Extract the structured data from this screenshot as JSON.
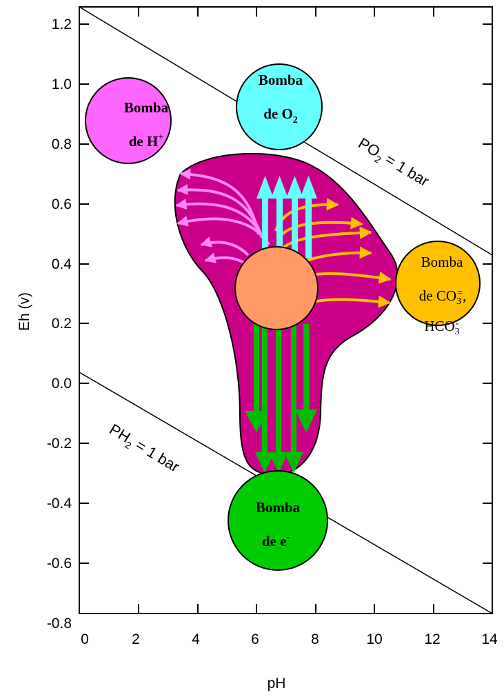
{
  "axes": {
    "x": {
      "title": "pH",
      "ticks": [
        "0",
        "2",
        "4",
        "6",
        "8",
        "10",
        "12",
        "14"
      ]
    },
    "y": {
      "title": "Eh (v)",
      "ticks": [
        "1.2",
        "1.0",
        "0.8",
        "0.6",
        "0.4",
        "0.2",
        "0.0",
        "-0.2",
        "-0.4",
        "-0.6",
        "-0.8"
      ]
    }
  },
  "boundaries": {
    "upper": {
      "main": "PO",
      "sub": "2",
      "rest": " = 1 bar"
    },
    "lower": {
      "main": "PH",
      "sub": "2",
      "rest": " = 1 bar"
    }
  },
  "pumps": {
    "h": {
      "line1": "Bomba",
      "line2_main": "de H",
      "line2_sup": "+",
      "color": "#ff66ff"
    },
    "o2": {
      "line1": "Bomba",
      "line2_main": "de O",
      "line2_sub": "2",
      "color": "#66ffff"
    },
    "co3": {
      "line1": "Bomba",
      "line2_main": "de CO",
      "line2_sub": "3",
      "line2_sup": "=",
      "line2_tail": ",",
      "line3_main": "HCO",
      "line3_sub": "3",
      "line3_sup": "-",
      "color": "#ffc000"
    },
    "e": {
      "line1": "Bomba",
      "line2_main": "de e",
      "line2_sup": "-",
      "color": "#00cc00"
    }
  },
  "colors": {
    "region_fill": "#cc0088",
    "center_circle": "#ff9966",
    "pink_arrows": "#ff88ff",
    "cyan_arrows": "#66ffff",
    "orange_arrows": "#ffc000",
    "green_arrows": "#00bb00"
  }
}
